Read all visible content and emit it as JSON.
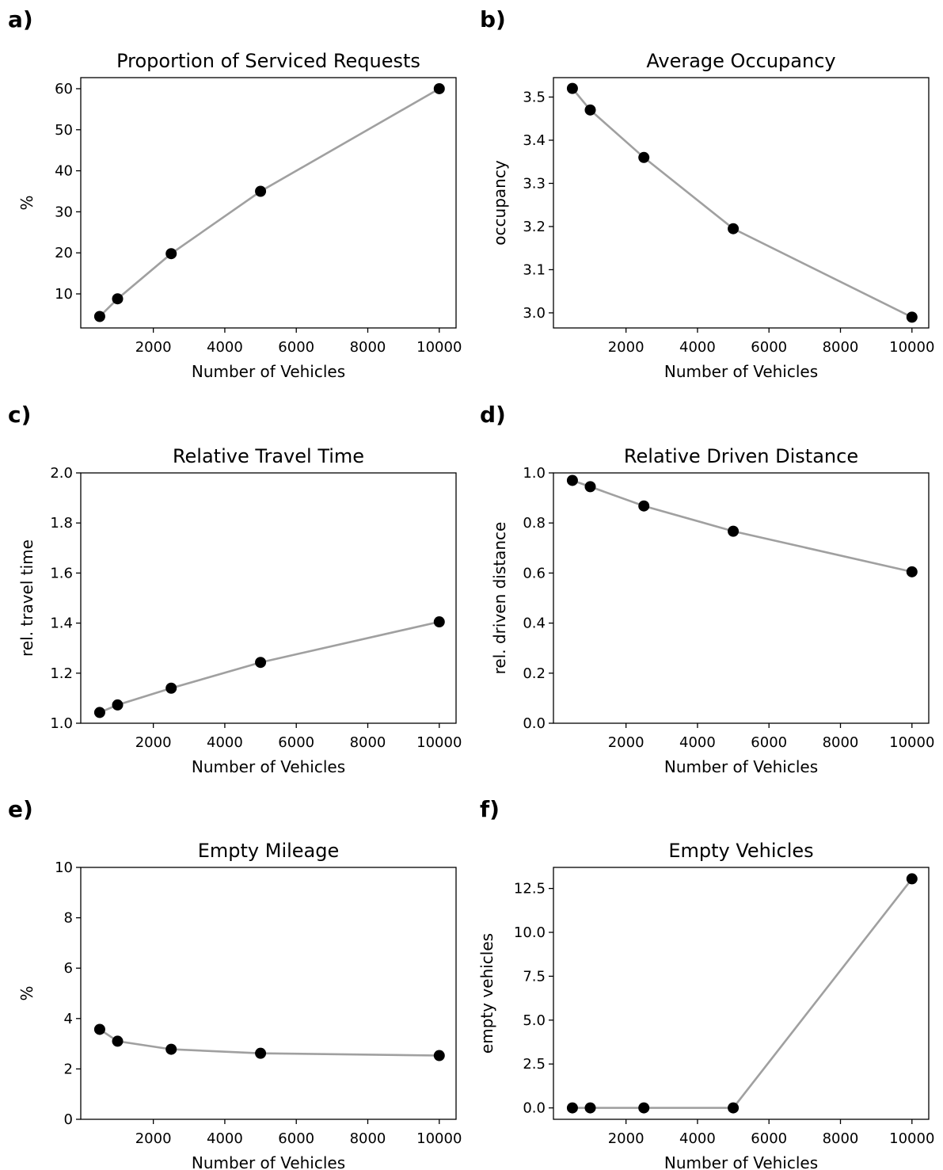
{
  "chart_data": [
    {
      "panel": "a)",
      "type": "line",
      "title": "Proportion of Serviced Requests",
      "xlabel": "Number of Vehicles",
      "ylabel": "%",
      "x": [
        500,
        1000,
        2500,
        5000,
        10000
      ],
      "values": [
        4.5,
        8.8,
        19.8,
        35.0,
        60.0
      ],
      "xlim": [
        -30,
        10470
      ],
      "ylim": [
        1.7,
        62.7
      ],
      "xticks": [
        2000,
        4000,
        6000,
        8000,
        10000
      ],
      "xtick_labels": [
        "2000",
        "4000",
        "6000",
        "8000",
        "10000"
      ],
      "yticks": [
        10,
        20,
        30,
        40,
        50,
        60
      ],
      "ytick_labels": [
        "10",
        "20",
        "30",
        "40",
        "50",
        "60"
      ],
      "line_color": "#a0a0a0",
      "marker_color": "#000000",
      "grid": false
    },
    {
      "panel": "b)",
      "type": "line",
      "title": "Average Occupancy",
      "xlabel": "Number of Vehicles",
      "ylabel": "occupancy",
      "x": [
        500,
        1000,
        2500,
        5000,
        10000
      ],
      "values": [
        3.52,
        3.47,
        3.36,
        3.195,
        2.99
      ],
      "xlim": [
        -30,
        10470
      ],
      "ylim": [
        2.965,
        3.545
      ],
      "xticks": [
        2000,
        4000,
        6000,
        8000,
        10000
      ],
      "xtick_labels": [
        "2000",
        "4000",
        "6000",
        "8000",
        "10000"
      ],
      "yticks": [
        3.0,
        3.1,
        3.2,
        3.3,
        3.4,
        3.5
      ],
      "ytick_labels": [
        "3.0",
        "3.1",
        "3.2",
        "3.3",
        "3.4",
        "3.5"
      ],
      "line_color": "#a0a0a0",
      "marker_color": "#000000",
      "grid": false
    },
    {
      "panel": "c)",
      "type": "line",
      "title": "Relative Travel Time",
      "xlabel": "Number of Vehicles",
      "ylabel": "rel. travel time",
      "x": [
        500,
        1000,
        2500,
        5000,
        10000
      ],
      "values": [
        1.043,
        1.073,
        1.14,
        1.243,
        1.405
      ],
      "xlim": [
        -30,
        10470
      ],
      "ylim": [
        1.0,
        2.0
      ],
      "xticks": [
        2000,
        4000,
        6000,
        8000,
        10000
      ],
      "xtick_labels": [
        "2000",
        "4000",
        "6000",
        "8000",
        "10000"
      ],
      "yticks": [
        1.0,
        1.2,
        1.4,
        1.6,
        1.8,
        2.0
      ],
      "ytick_labels": [
        "1.0",
        "1.2",
        "1.4",
        "1.6",
        "1.8",
        "2.0"
      ],
      "line_color": "#a0a0a0",
      "marker_color": "#000000",
      "grid": false
    },
    {
      "panel": "d)",
      "type": "line",
      "title": "Relative Driven Distance",
      "xlabel": "Number of Vehicles",
      "ylabel": "rel. driven distance",
      "x": [
        500,
        1000,
        2500,
        5000,
        10000
      ],
      "values": [
        0.97,
        0.945,
        0.868,
        0.767,
        0.605
      ],
      "xlim": [
        -30,
        10470
      ],
      "ylim": [
        0.0,
        1.0
      ],
      "xticks": [
        2000,
        4000,
        6000,
        8000,
        10000
      ],
      "xtick_labels": [
        "2000",
        "4000",
        "6000",
        "8000",
        "10000"
      ],
      "yticks": [
        0.0,
        0.2,
        0.4,
        0.6,
        0.8,
        1.0
      ],
      "ytick_labels": [
        "0.0",
        "0.2",
        "0.4",
        "0.6",
        "0.8",
        "1.0"
      ],
      "line_color": "#a0a0a0",
      "marker_color": "#000000",
      "grid": false
    },
    {
      "panel": "e)",
      "type": "line",
      "title": "Empty Mileage",
      "xlabel": "Number of Vehicles",
      "ylabel": "%",
      "x": [
        500,
        1000,
        2500,
        5000,
        10000
      ],
      "values": [
        3.57,
        3.1,
        2.78,
        2.62,
        2.53
      ],
      "xlim": [
        -30,
        10470
      ],
      "ylim": [
        0,
        10
      ],
      "xticks": [
        2000,
        4000,
        6000,
        8000,
        10000
      ],
      "xtick_labels": [
        "2000",
        "4000",
        "6000",
        "8000",
        "10000"
      ],
      "yticks": [
        0,
        2,
        4,
        6,
        8,
        10
      ],
      "ytick_labels": [
        "0",
        "2",
        "4",
        "6",
        "8",
        "10"
      ],
      "line_color": "#a0a0a0",
      "marker_color": "#000000",
      "grid": false
    },
    {
      "panel": "f)",
      "type": "line",
      "title": "Empty Vehicles",
      "xlabel": "Number of Vehicles",
      "ylabel": "empty vehicles",
      "x": [
        500,
        1000,
        2500,
        5000,
        10000
      ],
      "values": [
        0,
        0,
        0,
        0,
        13.05
      ],
      "xlim": [
        -30,
        10470
      ],
      "ylim": [
        -0.65,
        13.7
      ],
      "xticks": [
        2000,
        4000,
        6000,
        8000,
        10000
      ],
      "xtick_labels": [
        "2000",
        "4000",
        "6000",
        "8000",
        "10000"
      ],
      "yticks": [
        0.0,
        2.5,
        5.0,
        7.5,
        10.0,
        12.5
      ],
      "ytick_labels": [
        "0.0",
        "2.5",
        "5.0",
        "7.5",
        "10.0",
        "12.5"
      ],
      "line_color": "#a0a0a0",
      "marker_color": "#000000",
      "grid": false
    }
  ]
}
